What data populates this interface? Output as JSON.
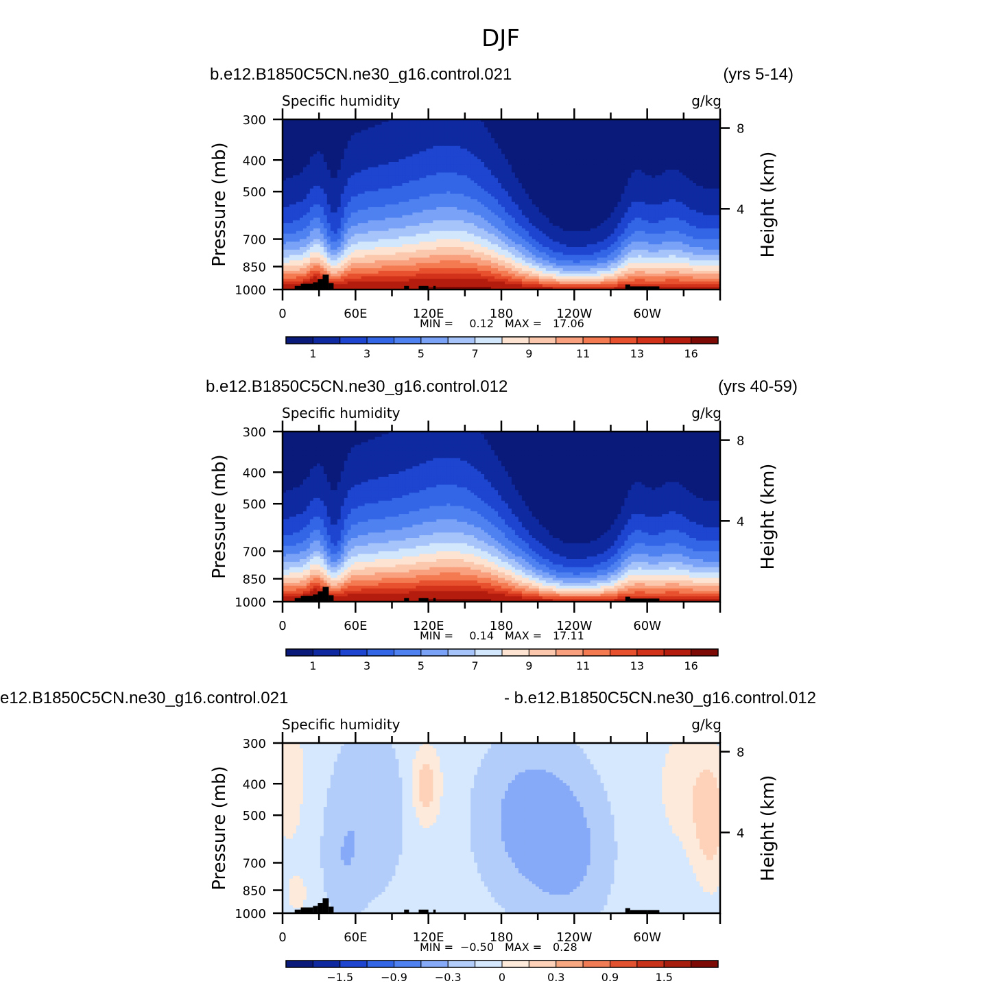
{
  "figure_title": "DJF",
  "chart_data": [
    {
      "type": "heatmap",
      "title": "Specific humidity",
      "units": "g/kg",
      "case_left": "b.e12.B1850C5CN.ne30_g16.control.021",
      "case_right": "(yrs 5-14)",
      "ylabel": "Pressure (mb)",
      "ylabel_right": "Height (km)",
      "y_ticks": [
        "300",
        "400",
        "500",
        "700",
        "850",
        "1000"
      ],
      "y_tick_values": [
        300,
        400,
        500,
        700,
        850,
        1000
      ],
      "height_ticks": [
        "8",
        "4"
      ],
      "height_tick_values": [
        8,
        4
      ],
      "x_ticks": [
        "0",
        "60E",
        "120E",
        "180",
        "120W",
        "60W"
      ],
      "x_tick_values": [
        0,
        60,
        120,
        180,
        240,
        300
      ],
      "xlim": [
        0,
        360
      ],
      "ylim": [
        1000,
        300
      ],
      "min_label": "MIN =",
      "min_value": "0.12",
      "max_label": "MAX =",
      "max_value": "17.06",
      "colorbar_labels": [
        "1",
        "3",
        "5",
        "7",
        "9",
        "11",
        "13",
        "16"
      ],
      "field": "base"
    },
    {
      "type": "heatmap",
      "title": "Specific humidity",
      "units": "g/kg",
      "case_left": "b.e12.B1850C5CN.ne30_g16.control.012",
      "case_right": "(yrs 40-59)",
      "ylabel": "Pressure (mb)",
      "ylabel_right": "Height (km)",
      "y_ticks": [
        "300",
        "400",
        "500",
        "700",
        "850",
        "1000"
      ],
      "y_tick_values": [
        300,
        400,
        500,
        700,
        850,
        1000
      ],
      "height_ticks": [
        "8",
        "4"
      ],
      "height_tick_values": [
        8,
        4
      ],
      "x_ticks": [
        "0",
        "60E",
        "120E",
        "180",
        "120W",
        "60W"
      ],
      "x_tick_values": [
        0,
        60,
        120,
        180,
        240,
        300
      ],
      "xlim": [
        0,
        360
      ],
      "ylim": [
        1000,
        300
      ],
      "min_label": "MIN =",
      "min_value": "0.14",
      "max_label": "MAX =",
      "max_value": "17.11",
      "colorbar_labels": [
        "1",
        "3",
        "5",
        "7",
        "9",
        "11",
        "13",
        "16"
      ],
      "field": "base"
    },
    {
      "type": "heatmap",
      "title": "Specific humidity",
      "units": "g/kg",
      "case_left": "e12.B1850C5CN.ne30_g16.control.021",
      "case_right": "- b.e12.B1850C5CN.ne30_g16.control.012",
      "ylabel": "Pressure (mb)",
      "ylabel_right": "Height (km)",
      "y_ticks": [
        "300",
        "400",
        "500",
        "700",
        "850",
        "1000"
      ],
      "y_tick_values": [
        300,
        400,
        500,
        700,
        850,
        1000
      ],
      "height_ticks": [
        "8",
        "4"
      ],
      "height_tick_values": [
        8,
        4
      ],
      "x_ticks": [
        "0",
        "60E",
        "120E",
        "180",
        "120W",
        "60W"
      ],
      "x_tick_values": [
        0,
        60,
        120,
        180,
        240,
        300
      ],
      "xlim": [
        0,
        360
      ],
      "ylim": [
        1000,
        300
      ],
      "min_label": "MIN =",
      "min_value": "−0.50",
      "max_label": "MAX =",
      "max_value": "0.28",
      "colorbar_labels": [
        "−1.5",
        "−0.9",
        "−0.3",
        "0",
        "0.3",
        "0.9",
        "1.5"
      ],
      "field": "diff"
    }
  ],
  "colors": {
    "scale": [
      "#0a1a7a",
      "#0f2aa0",
      "#1d45d0",
      "#3366e6",
      "#4f82f0",
      "#7aa2f6",
      "#a6c4fa",
      "#d2e6fc",
      "#fde4d2",
      "#fcc8ad",
      "#f9a17e",
      "#f47a52",
      "#e8512e",
      "#d2321a",
      "#b41d0e",
      "#7e0a06"
    ],
    "diff_scale": [
      "#0a1a7a",
      "#0f2aa0",
      "#1d45d0",
      "#3366e6",
      "#4f82f0",
      "#86aaf7",
      "#b3cdfa",
      "#d6e8fd",
      "#fdeadb",
      "#fdd2b8",
      "#f8a880",
      "#f07c55",
      "#e25130",
      "#c8321b",
      "#a81e0e",
      "#7e0a06"
    ],
    "terrain": "#000000"
  }
}
